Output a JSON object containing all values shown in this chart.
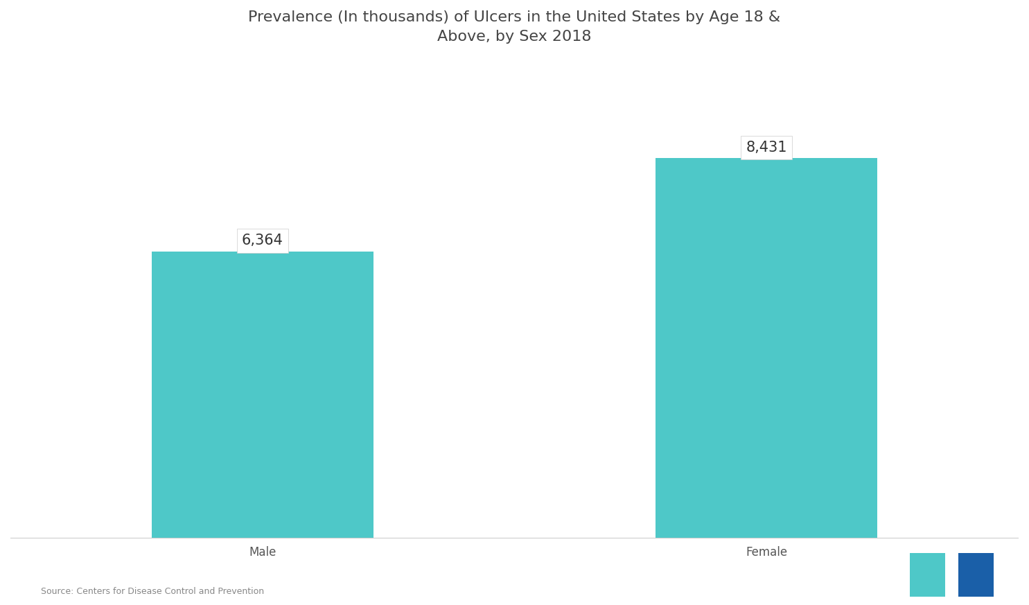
{
  "title_line1": "Prevalence (In thousands) of Ulcers in the United States by Age 18 &",
  "title_line2": "Above, by Sex 2018",
  "categories": [
    "Male",
    "Female"
  ],
  "values": [
    6364,
    8431
  ],
  "bar_color": "#4EC8C8",
  "background_color": "#ffffff",
  "plot_bg_color": "#ffffff",
  "text_color": "#555555",
  "title_color": "#444444",
  "source_text": "Source: Centers for Disease Control and Prevention",
  "ylim": [
    0,
    10500
  ],
  "bar_positions": [
    0.25,
    0.75
  ],
  "bar_width": 0.22,
  "annotation_fontsize": 15,
  "title_fontsize": 16,
  "tick_fontsize": 12,
  "source_fontsize": 9,
  "logo_teal": "#4EC8C8",
  "logo_blue": "#1a5fa8"
}
